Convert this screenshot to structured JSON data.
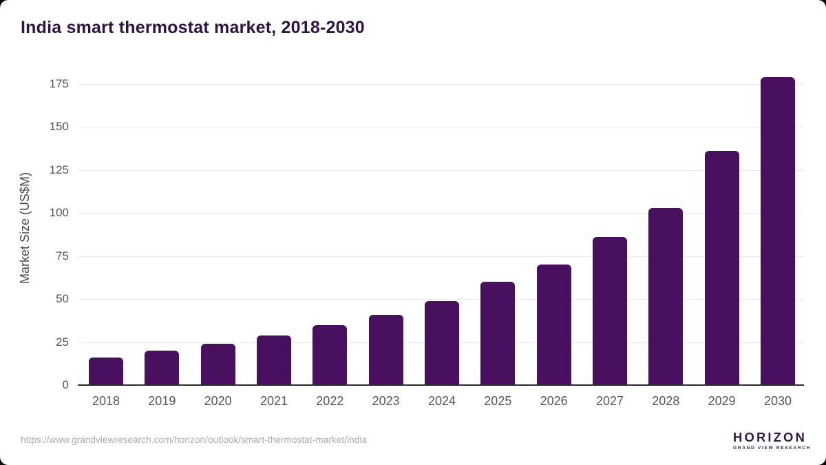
{
  "page": {
    "title": "India smart thermostat market, 2018-2030",
    "source_url": "https://www.grandviewresearch.com/horizon/outlook/smart-thermostat-market/india"
  },
  "chart_data": {
    "type": "bar",
    "title": "India smart thermostat market, 2018-2030",
    "categories": [
      "2018",
      "2019",
      "2020",
      "2021",
      "2022",
      "2023",
      "2024",
      "2025",
      "2026",
      "2027",
      "2028",
      "2029",
      "2030"
    ],
    "values": [
      16,
      20,
      24,
      29,
      35,
      41,
      49,
      60,
      70,
      86,
      103,
      136,
      179
    ],
    "xlabel": "",
    "ylabel": "Market Size (US$M)",
    "ylim": [
      0,
      185
    ],
    "yticks": [
      0,
      25,
      50,
      75,
      100,
      125,
      150,
      175
    ],
    "grid": "horizontal-only",
    "legend": "none",
    "bar_color": "#4a1060"
  },
  "colors": {
    "title_text": "#2e1444",
    "bar": "#4a1060",
    "axis_line": "#2d2d2d",
    "gridline": "#eaeaea",
    "tick_text": "#565656",
    "source_text": "#ababab",
    "logo_purple": "#2e1a46",
    "logo_blue": "#56c1e8"
  },
  "logo": {
    "brand": "HORIZON",
    "sub_brand": "GRAND VIEW RESEARCH"
  }
}
